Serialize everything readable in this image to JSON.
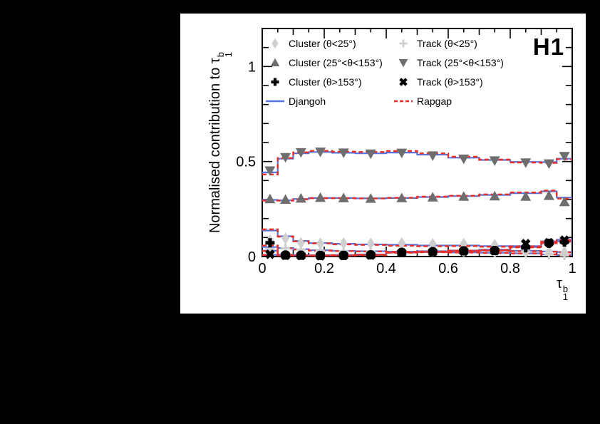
{
  "figure": {
    "background_color": "#000000",
    "panel_color": "#ffffff",
    "experiment_label": "H1"
  },
  "axes": {
    "x": {
      "title_symbol": "τ",
      "title_sup": "b",
      "title_sub": "1",
      "min": 0,
      "max": 1,
      "ticks": [
        "0",
        "0.2",
        "0.4",
        "0.6",
        "0.8",
        "1"
      ],
      "tick_values": [
        0,
        0.2,
        0.4,
        0.6,
        0.8,
        1
      ]
    },
    "y": {
      "title_prefix": "Normalised contribution to ",
      "title_symbol": "τ",
      "title_sup": "b",
      "title_sub": "1",
      "min": 0,
      "max": 1.2,
      "ticks": [
        "0",
        "0.5",
        "1"
      ],
      "tick_values": [
        0,
        0.5,
        1
      ]
    }
  },
  "legend": {
    "position": "top-inside",
    "items": [
      {
        "label": "Cluster (θ<25°)",
        "marker": "diamond",
        "color": "#cfcfcf"
      },
      {
        "label": "Track (θ<25°)",
        "marker": "plus",
        "color": "#cfcfcf"
      },
      {
        "label": "Cluster (25°<θ<153°)",
        "marker": "triangle-up",
        "color": "#6e6e6e"
      },
      {
        "label": "Track (25°<θ<153°)",
        "marker": "triangle-down",
        "color": "#6e6e6e"
      },
      {
        "label": "Cluster (θ>153°)",
        "marker": "plus-bold",
        "color": "#000000"
      },
      {
        "label": "Track (θ>153°)",
        "marker": "x-bold",
        "color": "#000000"
      },
      {
        "label": "Djangoh",
        "marker": "line-solid",
        "color": "#5275e2"
      },
      {
        "label": "Rapgap",
        "marker": "line-dashed",
        "color": "#ee2e24"
      }
    ]
  },
  "chart_data": {
    "type": "histogram",
    "title": "",
    "xlabel": "tau_1^b",
    "ylabel": "Normalised contribution to tau_1^b",
    "xlim": [
      0,
      1
    ],
    "ylim": [
      0,
      1.2
    ],
    "grid": false,
    "bin_edges": [
      0,
      0.05,
      0.1,
      0.15,
      0.225,
      0.3,
      0.4,
      0.5,
      0.6,
      0.7,
      0.8,
      0.9,
      0.95,
      1.0
    ],
    "bin_centers": [
      0.025,
      0.075,
      0.125,
      0.1875,
      0.2625,
      0.35,
      0.45,
      0.55,
      0.65,
      0.75,
      0.85,
      0.925,
      0.975
    ],
    "models": [
      {
        "name": "Djangoh",
        "color": "#5275e2",
        "style": "solid",
        "width": 2.2
      },
      {
        "name": "Rapgap",
        "color": "#ee2e24",
        "style": "dashed",
        "width": 2.4
      }
    ],
    "series": [
      {
        "name": "track_mid",
        "label": "Track (25°<θ<153°)",
        "marker": "triangle-down",
        "color": "#6e6e6e",
        "data": [
          0.452,
          0.522,
          0.548,
          0.551,
          0.546,
          0.541,
          0.545,
          0.531,
          0.514,
          0.505,
          0.494,
          0.489,
          0.528
        ],
        "djangoh": [
          0.443,
          0.515,
          0.543,
          0.55,
          0.546,
          0.543,
          0.547,
          0.536,
          0.52,
          0.508,
          0.498,
          0.497,
          0.515
        ],
        "rapgap": [
          0.432,
          0.518,
          0.548,
          0.556,
          0.552,
          0.55,
          0.555,
          0.543,
          0.525,
          0.51,
          0.495,
          0.493,
          0.512
        ]
      },
      {
        "name": "cluster_mid",
        "label": "Cluster (25°<θ<153°)",
        "marker": "triangle-up",
        "color": "#6e6e6e",
        "data": [
          0.303,
          0.3,
          0.306,
          0.31,
          0.308,
          0.305,
          0.308,
          0.312,
          0.316,
          0.318,
          0.316,
          0.32,
          0.288
        ],
        "djangoh": [
          0.298,
          0.296,
          0.303,
          0.308,
          0.308,
          0.306,
          0.308,
          0.313,
          0.318,
          0.324,
          0.333,
          0.343,
          0.31
        ],
        "rapgap": [
          0.294,
          0.294,
          0.301,
          0.307,
          0.307,
          0.306,
          0.309,
          0.315,
          0.32,
          0.327,
          0.337,
          0.347,
          0.305
        ]
      },
      {
        "name": "cluster_low",
        "label": "Cluster (θ<25°)",
        "marker": "diamond",
        "color": "#cfcfcf",
        "data": [
          0.085,
          0.096,
          0.071,
          0.069,
          0.07,
          0.068,
          0.07,
          0.066,
          0.067,
          0.061,
          0.022,
          0.025,
          0.022
        ],
        "djangoh": [
          0.137,
          0.107,
          0.082,
          0.071,
          0.067,
          0.064,
          0.062,
          0.058,
          0.058,
          0.055,
          0.03,
          0.027,
          0.024
        ],
        "rapgap": [
          0.143,
          0.105,
          0.08,
          0.069,
          0.064,
          0.061,
          0.057,
          0.054,
          0.055,
          0.052,
          0.028,
          0.025,
          0.022
        ]
      },
      {
        "name": "track_low",
        "label": "Track (θ<25°)",
        "marker": "plus",
        "color": "#cfcfcf",
        "data": [
          0.04,
          0.043,
          0.037,
          0.03,
          0.028,
          0.027,
          0.026,
          0.024,
          0.023,
          0.021,
          0.026,
          0.011,
          0.006
        ],
        "djangoh": [
          0.031,
          0.045,
          0.039,
          0.033,
          0.03,
          0.028,
          0.026,
          0.024,
          0.022,
          0.02,
          0.017,
          0.012,
          0.008
        ],
        "rapgap": [
          0.029,
          0.043,
          0.037,
          0.031,
          0.029,
          0.027,
          0.025,
          0.023,
          0.021,
          0.019,
          0.016,
          0.011,
          0.007
        ]
      },
      {
        "name": "cluster_back",
        "label": "Cluster (θ>153°)",
        "marker": "plus-bold",
        "color": "#000000",
        "data": [
          0.072,
          0.008,
          0.007,
          0.006,
          0.006,
          0.009,
          0.022,
          0.026,
          0.03,
          0.032,
          0.046,
          0.07,
          0.076
        ],
        "djangoh": [
          0.05,
          0.01,
          0.008,
          0.007,
          0.008,
          0.011,
          0.024,
          0.028,
          0.032,
          0.036,
          0.05,
          0.072,
          0.08
        ],
        "rapgap": [
          0.058,
          0.009,
          0.007,
          0.006,
          0.007,
          0.01,
          0.023,
          0.027,
          0.031,
          0.035,
          0.048,
          0.07,
          0.078
        ]
      },
      {
        "name": "track_back",
        "label": "Track (θ>153°)",
        "marker": "x-bold",
        "color": "#000000",
        "data": [
          0.012,
          0.006,
          0.005,
          0.004,
          0.005,
          0.007,
          0.02,
          0.024,
          0.028,
          0.03,
          0.068,
          0.073,
          0.086
        ],
        "djangoh": [
          0.009,
          0.007,
          0.006,
          0.005,
          0.006,
          0.008,
          0.021,
          0.025,
          0.029,
          0.032,
          0.055,
          0.08,
          0.088
        ],
        "rapgap": [
          0.008,
          0.006,
          0.005,
          0.005,
          0.005,
          0.007,
          0.02,
          0.024,
          0.028,
          0.031,
          0.053,
          0.078,
          0.086
        ]
      }
    ]
  }
}
